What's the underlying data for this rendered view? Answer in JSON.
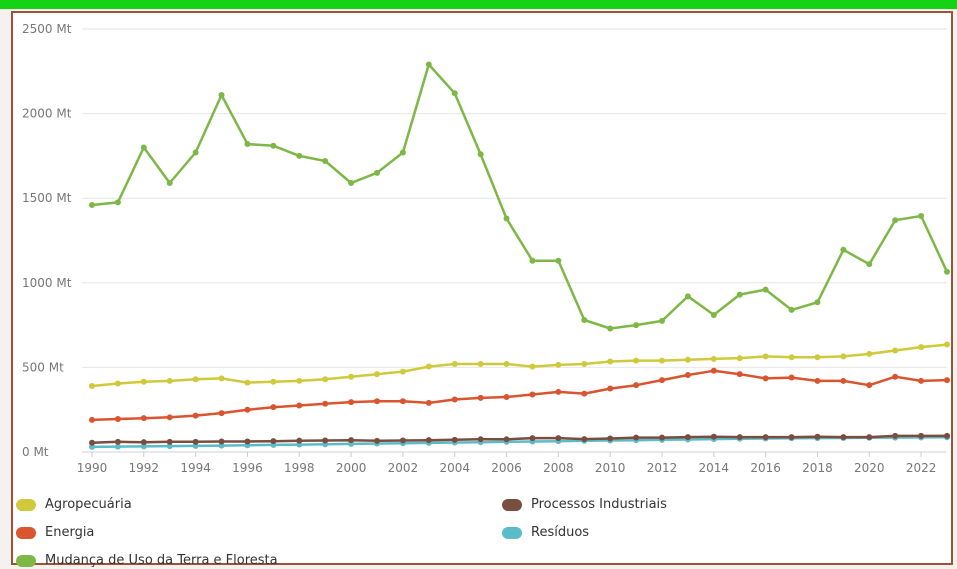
{
  "colors": {
    "top_band": "#14d314",
    "frame": "#a0513a",
    "grid": "#e6e6ec"
  },
  "chart_data": {
    "type": "line",
    "x": [
      1990,
      1991,
      1992,
      1993,
      1994,
      1995,
      1996,
      1997,
      1998,
      1999,
      2000,
      2001,
      2002,
      2003,
      2004,
      2005,
      2006,
      2007,
      2008,
      2009,
      2010,
      2011,
      2012,
      2013,
      2014,
      2015,
      2016,
      2017,
      2018,
      2019,
      2020,
      2021,
      2022,
      2023
    ],
    "x_ticks": [
      "1990",
      "1992",
      "1994",
      "1996",
      "1998",
      "2000",
      "2002",
      "2004",
      "2006",
      "2008",
      "2010",
      "2012",
      "2014",
      "2016",
      "2018",
      "2020",
      "2022"
    ],
    "y_ticks": [
      "0 Mt",
      "500 Mt",
      "1000 Mt",
      "1500 Mt",
      "2000 Mt",
      "2500 Mt"
    ],
    "ylim": [
      0,
      2500
    ],
    "xlabel": "",
    "ylabel": "",
    "grid": true,
    "legend_position": "bottom",
    "series": [
      {
        "name": "Mudança de Uso da Terra e Floresta",
        "color": "#7db846",
        "values": [
          1460,
          1475,
          1800,
          1590,
          1770,
          2110,
          1820,
          1810,
          1750,
          1720,
          1590,
          1650,
          1770,
          2290,
          2120,
          1760,
          1380,
          1130,
          1130,
          780,
          730,
          750,
          775,
          920,
          810,
          930,
          960,
          840,
          885,
          1195,
          1110,
          1370,
          1395,
          1065
        ]
      },
      {
        "name": "Agropecuária",
        "color": "#cfc93b",
        "values": [
          390,
          405,
          415,
          420,
          430,
          435,
          410,
          415,
          420,
          430,
          445,
          460,
          475,
          505,
          520,
          520,
          520,
          505,
          515,
          520,
          535,
          540,
          540,
          545,
          550,
          555,
          565,
          560,
          560,
          565,
          580,
          600,
          620,
          635
        ]
      },
      {
        "name": "Energia",
        "color": "#d9542f",
        "values": [
          190,
          195,
          200,
          205,
          215,
          230,
          250,
          265,
          275,
          285,
          295,
          300,
          300,
          290,
          310,
          320,
          325,
          340,
          355,
          345,
          375,
          395,
          425,
          455,
          480,
          460,
          435,
          440,
          420,
          420,
          395,
          445,
          420,
          425
        ]
      },
      {
        "name": "Processos Industriais",
        "color": "#7a4d3e",
        "values": [
          55,
          60,
          58,
          60,
          60,
          62,
          62,
          64,
          67,
          68,
          70,
          66,
          68,
          70,
          72,
          75,
          75,
          82,
          82,
          76,
          80,
          85,
          85,
          88,
          90,
          88,
          88,
          88,
          90,
          88,
          88,
          95,
          95,
          95
        ]
      },
      {
        "name": "Resíduos",
        "color": "#5bbcc9",
        "values": [
          30,
          32,
          33,
          35,
          36,
          38,
          40,
          42,
          44,
          46,
          48,
          50,
          52,
          54,
          56,
          58,
          60,
          62,
          64,
          66,
          68,
          70,
          72,
          74,
          76,
          78,
          80,
          81,
          82,
          83,
          84,
          85,
          86,
          87
        ]
      }
    ],
    "legend_order": [
      "Agropecuária",
      "Processos Industriais",
      "Energia",
      "Resíduos",
      "Mudança de Uso da Terra e Floresta"
    ]
  }
}
